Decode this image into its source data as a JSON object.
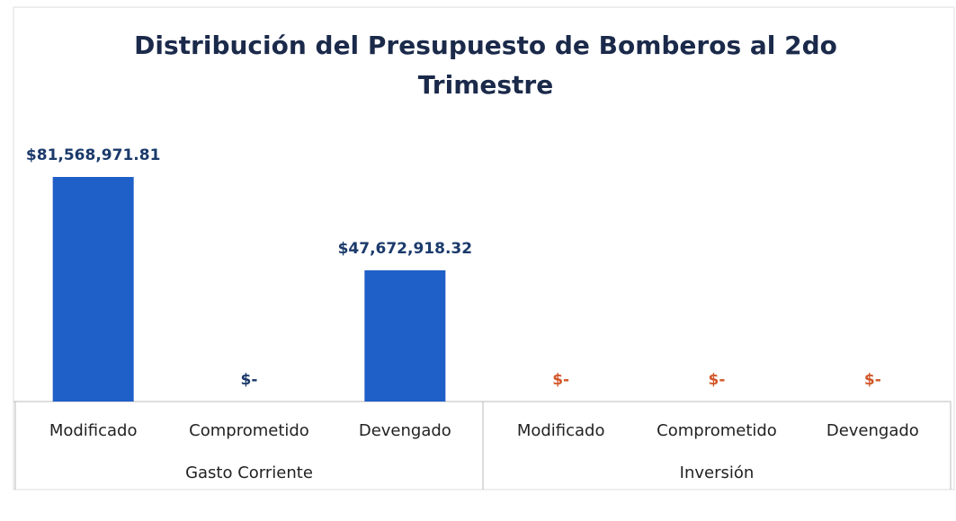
{
  "chart_data": {
    "type": "bar",
    "title": "Distribución del Presupuesto de Bomberos al 2do Trimestre",
    "color": "#1f5fc8",
    "groups": [
      {
        "name": "Gasto Corriente",
        "categories": [
          "Modificado",
          "Comprometido",
          "Devengado"
        ],
        "values": [
          81568971.81,
          0,
          47672918.32
        ],
        "value_labels": [
          "$81,568,971.81",
          "$-",
          "$47,672,918.32"
        ],
        "label_color": "#1b3a6b"
      },
      {
        "name": "Inversión",
        "categories": [
          "Modificado",
          "Comprometido",
          "Devengado"
        ],
        "values": [
          0,
          0,
          0
        ],
        "value_labels": [
          "$-",
          "$-",
          "$-"
        ],
        "label_color": "#d2572a"
      }
    ]
  }
}
